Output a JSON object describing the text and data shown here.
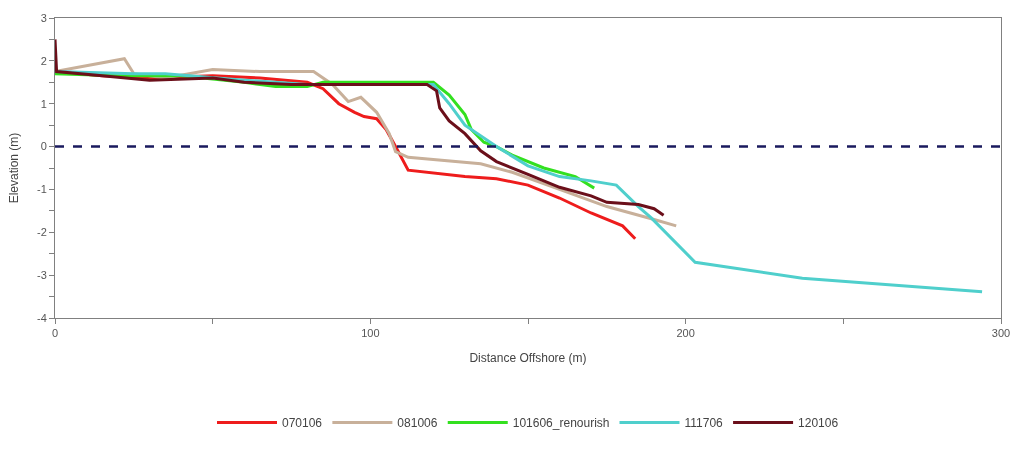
{
  "chart_data": {
    "type": "line",
    "xlabel": "Distance Offshore (m)",
    "ylabel": "Elevation (m)",
    "xlim": [
      0,
      300
    ],
    "ylim": [
      -4,
      3
    ],
    "xticks": [
      0,
      {
        "value": 50,
        "label": null
      },
      100,
      {
        "value": 150,
        "label": null
      },
      200,
      {
        "value": 250,
        "label": null
      },
      300
    ],
    "yticks": [
      -4,
      {
        "value": -3.5,
        "label": null
      },
      -3,
      {
        "value": -2.5,
        "label": null
      },
      -2,
      {
        "value": -1.5,
        "label": null
      },
      -1,
      {
        "value": -0.5,
        "label": null
      },
      0,
      {
        "value": 0.5,
        "label": null
      },
      1,
      {
        "value": 1.5,
        "label": null
      },
      2,
      {
        "value": 2.5,
        "label": null
      },
      3
    ],
    "legend": "bottom",
    "marker": "none",
    "line_style": "solid",
    "ref_lines": [
      {
        "axis": "y",
        "value": 0,
        "color": "#1a1a5e",
        "line_style": "dashed"
      }
    ],
    "series": [
      {
        "name": "070106",
        "color": "#ee1c1c",
        "x": [
          0,
          15,
          30,
          50,
          65,
          80,
          85,
          90,
          95,
          98,
          102,
          105,
          108,
          112,
          130,
          140,
          150,
          160,
          170,
          180,
          184
        ],
        "values": [
          1.75,
          1.65,
          1.6,
          1.65,
          1.6,
          1.5,
          1.35,
          1.0,
          0.8,
          0.7,
          0.65,
          0.4,
          0.0,
          -0.55,
          -0.7,
          -0.75,
          -0.9,
          -1.2,
          -1.55,
          -1.85,
          -2.15
        ]
      },
      {
        "name": "081006",
        "color": "#c8b09a",
        "x": [
          0,
          22,
          25,
          35,
          50,
          65,
          82,
          88,
          93,
          97,
          102,
          106,
          108,
          112,
          135,
          145,
          160,
          175,
          190,
          197
        ],
        "values": [
          1.75,
          2.05,
          1.7,
          1.6,
          1.8,
          1.75,
          1.75,
          1.45,
          1.05,
          1.15,
          0.8,
          0.3,
          -0.12,
          -0.25,
          -0.4,
          -0.6,
          -1.0,
          -1.4,
          -1.7,
          -1.85
        ]
      },
      {
        "name": "101606_renourish",
        "color": "#33e01f",
        "x": [
          0,
          20,
          40,
          60,
          70,
          80,
          85,
          120,
          125,
          130,
          132,
          136,
          140,
          145,
          155,
          165,
          171
        ],
        "values": [
          1.7,
          1.65,
          1.65,
          1.5,
          1.4,
          1.4,
          1.5,
          1.5,
          1.2,
          0.75,
          0.4,
          0.1,
          0.0,
          -0.2,
          -0.5,
          -0.7,
          -0.97
        ]
      },
      {
        "name": "111706",
        "color": "#4fcfcc",
        "x": [
          0,
          25,
          35,
          60,
          80,
          120,
          125,
          130,
          140,
          150,
          160,
          170,
          178,
          185,
          189,
          203,
          237,
          294
        ],
        "values": [
          1.75,
          1.7,
          1.7,
          1.55,
          1.45,
          1.45,
          1.0,
          0.5,
          0.0,
          -0.45,
          -0.7,
          -0.8,
          -0.9,
          -1.4,
          -1.66,
          -2.7,
          -3.07,
          -3.39
        ]
      },
      {
        "name": "120106",
        "color": "#6b0f1a",
        "x": [
          0,
          0.5,
          15,
          30,
          50,
          60,
          75,
          100,
          118,
          121,
          122,
          125,
          130,
          135,
          140,
          150,
          160,
          170,
          175,
          185,
          190,
          193
        ],
        "values": [
          2.5,
          1.75,
          1.65,
          1.55,
          1.6,
          1.5,
          1.45,
          1.45,
          1.45,
          1.3,
          0.9,
          0.6,
          0.3,
          -0.1,
          -0.35,
          -0.65,
          -0.95,
          -1.15,
          -1.3,
          -1.35,
          -1.45,
          -1.6
        ]
      }
    ]
  }
}
